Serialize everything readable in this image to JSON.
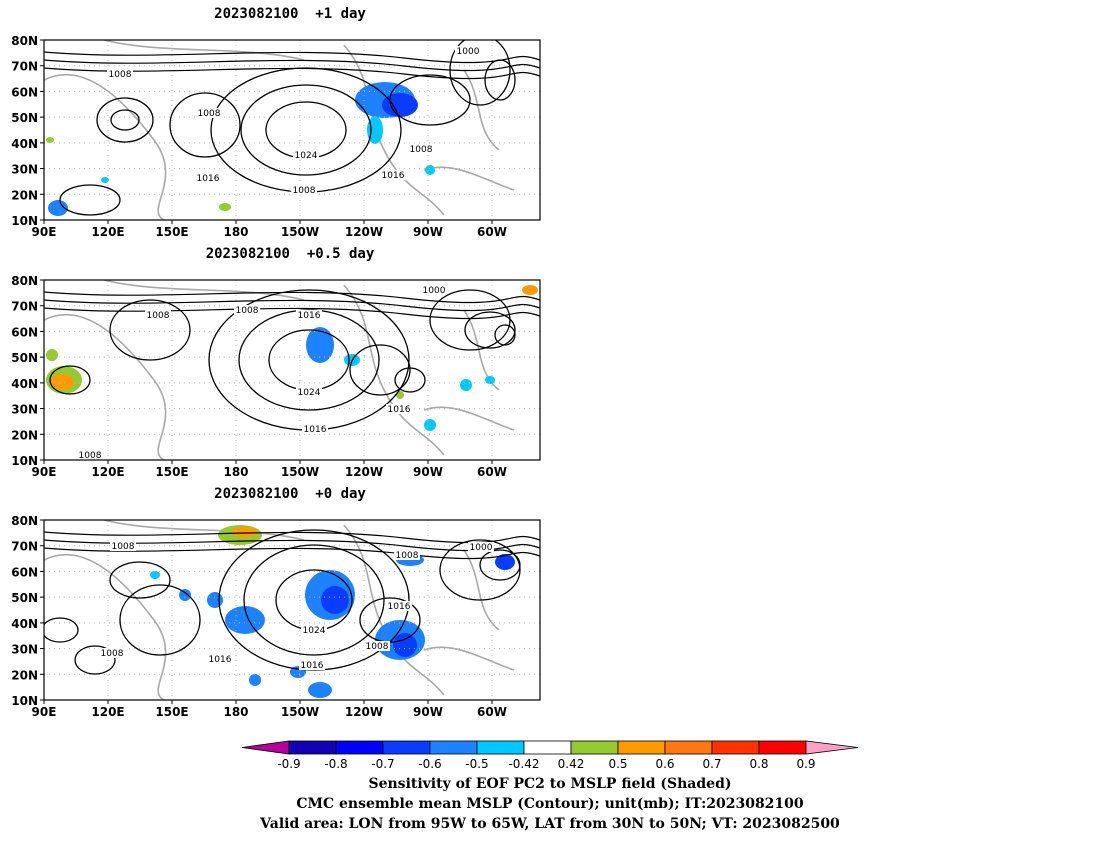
{
  "panels": [
    {
      "title": "2023082100  +1 day"
    },
    {
      "title": "2023082100  +0.5 day"
    },
    {
      "title": "2023082100  +0 day"
    }
  ],
  "lat_labels": [
    "80N",
    "70N",
    "60N",
    "50N",
    "40N",
    "30N",
    "20N",
    "10N"
  ],
  "lon_labels": [
    "90E",
    "120E",
    "150E",
    "180",
    "150W",
    "120W",
    "90W",
    "60W"
  ],
  "contour_labels": {
    "p1": [
      "1000",
      "1008",
      "1008",
      "1016",
      "1024",
      "1016",
      "1008",
      "1016",
      "1008"
    ],
    "p2": [
      "1000",
      "1008",
      "1008",
      "1016",
      "1024",
      "1016",
      "1016",
      "1008"
    ],
    "p3": [
      "1008",
      "1008",
      "1000",
      "1016",
      "1024",
      "1016",
      "1016",
      "1008",
      "1008"
    ]
  },
  "colorbar": {
    "ticks": [
      "-0.9",
      "-0.8",
      "-0.7",
      "-0.6",
      "-0.5",
      "-0.42",
      "0.42",
      "0.5",
      "0.6",
      "0.7",
      "0.8",
      "0.9"
    ],
    "colors": [
      "#b5009b",
      "#1400b4",
      "#0000ff",
      "#0a3cff",
      "#1e82ff",
      "#00c8ff",
      "#ffffff",
      "#96c832",
      "#ff9b00",
      "#ff7814",
      "#ff3200",
      "#ff0000",
      "#ffa0c8"
    ]
  },
  "footer": {
    "line1": "Sensitivity of EOF PC2 to MSLP field (Shaded)",
    "line2": "CMC ensemble mean MSLP (Contour); unit(mb); IT:2023082100",
    "line3": "Valid area: LON from 95W to 65W, LAT from 30N to 50N; VT: 2023082500"
  }
}
